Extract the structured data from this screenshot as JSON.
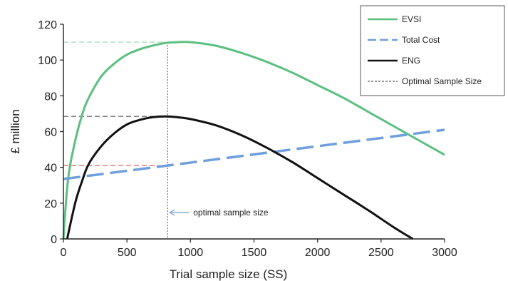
{
  "chart_data": {
    "type": "line",
    "title": "",
    "xlabel": "Trial sample size (SS)",
    "ylabel": "£ million",
    "xlim": [
      0,
      3000
    ],
    "ylim": [
      0,
      120
    ],
    "x_ticks": [
      0,
      500,
      1000,
      1500,
      2000,
      2500,
      3000
    ],
    "y_ticks": [
      0,
      20,
      40,
      60,
      80,
      100,
      120
    ],
    "grid": false,
    "legend_position": "top-right",
    "optimal_sample_size": 820,
    "annotation": "optimal sample size",
    "series": [
      {
        "name": "EVSI",
        "color": "#5cbf80",
        "style": "solid",
        "x": [
          0,
          25,
          50,
          100,
          150,
          200,
          300,
          400,
          500,
          600,
          700,
          800,
          900,
          1000,
          1200,
          1400,
          1600,
          1800,
          2000,
          2200,
          2400,
          2600,
          2800,
          3000
        ],
        "y": [
          0,
          25,
          40,
          57,
          70,
          79,
          91,
          98,
          103,
          106,
          108,
          109.5,
          110,
          110,
          108,
          104,
          99,
          93,
          86,
          79,
          71,
          63,
          55,
          47
        ]
      },
      {
        "name": "Total Cost",
        "color": "#6f9fdc",
        "style": "dashed",
        "x": [
          0,
          3000
        ],
        "y": [
          33.5,
          61
        ]
      },
      {
        "name": "ENG",
        "color": "#111111",
        "style": "solid",
        "x": [
          30,
          60,
          100,
          150,
          200,
          300,
          400,
          500,
          600,
          700,
          800,
          900,
          1000,
          1200,
          1400,
          1600,
          1800,
          2000,
          2200,
          2400,
          2600,
          2750
        ],
        "y": [
          0,
          10,
          22,
          33,
          42,
          52,
          59,
          64,
          66.5,
          68,
          68.5,
          68,
          67,
          63.5,
          58,
          51,
          43,
          34,
          25,
          16,
          6.5,
          0
        ]
      }
    ],
    "reference_lines": [
      {
        "series": "EVSI",
        "y": 110,
        "color": "#8fd6ad"
      },
      {
        "series": "ENG",
        "y": 68.5,
        "color": "#555555"
      },
      {
        "series": "Total Cost",
        "y": 41,
        "color": "#e06060"
      }
    ],
    "vline_label": "Optimal Sample Size"
  }
}
